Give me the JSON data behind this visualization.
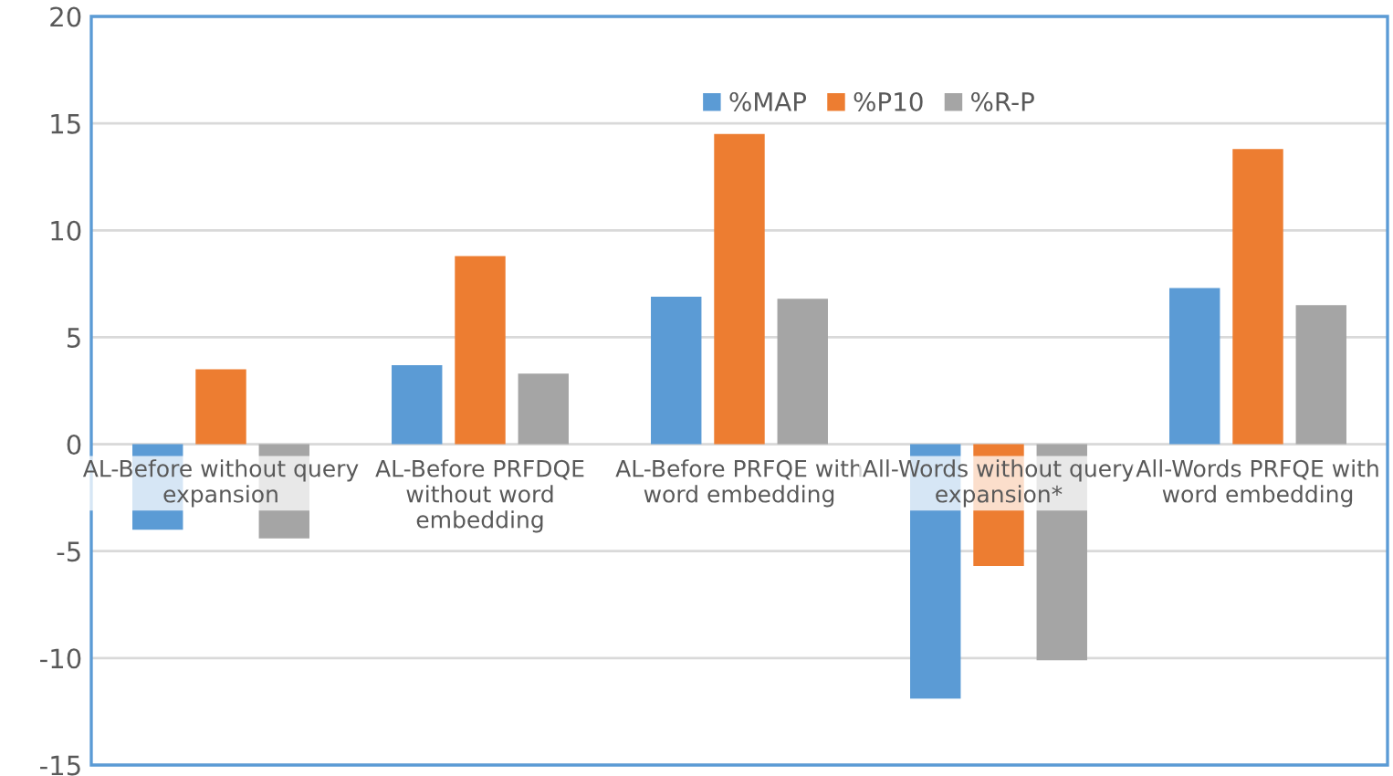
{
  "chart_data": {
    "type": "bar",
    "categories": [
      "AL-Before without query expansion",
      "AL-Before PRFDQE without word embedding",
      "AL-Before PRFQE with word embedding",
      "All-Words without query expansion*",
      "All-Words PRFQE with word embedding"
    ],
    "series": [
      {
        "name": "%MAP",
        "color": "#5b9bd5",
        "values": [
          -4.0,
          3.7,
          6.9,
          -11.9,
          7.3
        ]
      },
      {
        "name": "%P10",
        "color": "#ed7d31",
        "values": [
          3.5,
          8.8,
          14.5,
          -5.7,
          13.8
        ]
      },
      {
        "name": "%R-P",
        "color": "#a5a5a5",
        "values": [
          -4.4,
          3.3,
          6.8,
          -10.1,
          6.5
        ]
      }
    ],
    "ylim": [
      -15,
      20
    ],
    "yticks": [
      -15,
      -10,
      -5,
      0,
      5,
      10,
      15,
      20
    ],
    "grid": "y",
    "legend": "top"
  }
}
